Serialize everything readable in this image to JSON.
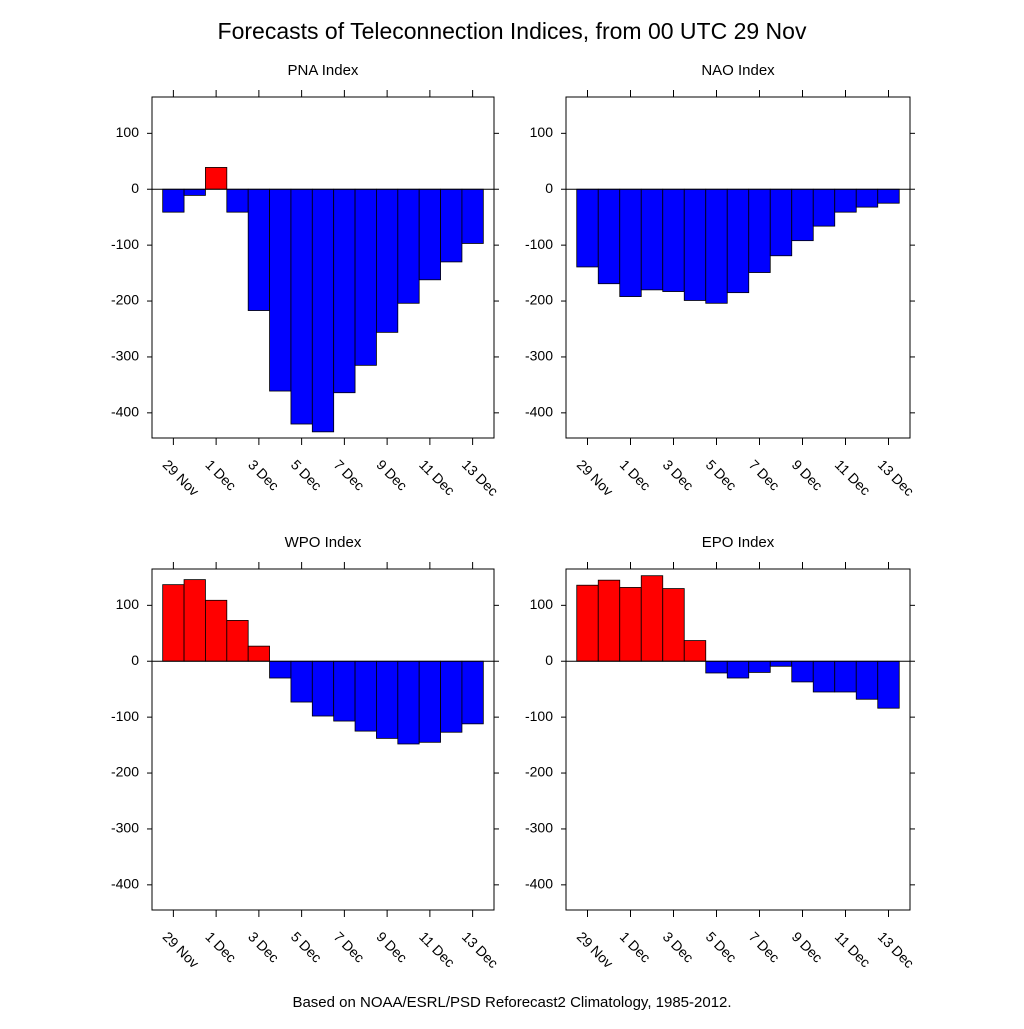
{
  "title": "Forecasts of Teleconnection Indices, from 00 UTC 29 Nov",
  "note": "Based on NOAA/ESRL/PSD Reforecast2 Climatology, 1985-2012.",
  "chart_data": [
    {
      "type": "bar",
      "title": "PNA Index",
      "categories": [
        "29 Nov",
        null,
        "1 Dec",
        null,
        "3 Dec",
        null,
        "5 Dec",
        null,
        "7 Dec",
        null,
        "9 Dec",
        null,
        "11 Dec",
        null,
        "13 Dec"
      ],
      "values": [
        -41,
        -11,
        39,
        -41,
        -217,
        -361,
        -420,
        -434,
        -364,
        -315,
        -256,
        -204,
        -162,
        -130,
        -97
      ],
      "positive_color": "#ff0000",
      "negative_color": "#0000ff",
      "ylim": [
        -445,
        165
      ],
      "yticks": [
        -400,
        -300,
        -200,
        -100,
        0,
        100
      ]
    },
    {
      "type": "bar",
      "title": "NAO Index",
      "categories": [
        "29 Nov",
        null,
        "1 Dec",
        null,
        "3 Dec",
        null,
        "5 Dec",
        null,
        "7 Dec",
        null,
        "9 Dec",
        null,
        "11 Dec",
        null,
        "13 Dec"
      ],
      "values": [
        -139,
        -169,
        -192,
        -180,
        -183,
        -199,
        -204,
        -185,
        -149,
        -119,
        -92,
        -66,
        -41,
        -32,
        -25
      ],
      "positive_color": "#ff0000",
      "negative_color": "#0000ff",
      "ylim": [
        -445,
        165
      ],
      "yticks": [
        -400,
        -300,
        -200,
        -100,
        0,
        100
      ]
    },
    {
      "type": "bar",
      "title": "WPO Index",
      "categories": [
        "29 Nov",
        null,
        "1 Dec",
        null,
        "3 Dec",
        null,
        "5 Dec",
        null,
        "7 Dec",
        null,
        "9 Dec",
        null,
        "11 Dec",
        null,
        "13 Dec"
      ],
      "values": [
        137,
        146,
        109,
        73,
        27,
        -30,
        -73,
        -98,
        -107,
        -125,
        -138,
        -148,
        -145,
        -127,
        -112
      ],
      "positive_color": "#ff0000",
      "negative_color": "#0000ff",
      "ylim": [
        -445,
        165
      ],
      "yticks": [
        -400,
        -300,
        -200,
        -100,
        0,
        100
      ]
    },
    {
      "type": "bar",
      "title": "EPO Index",
      "categories": [
        "29 Nov",
        null,
        "1 Dec",
        null,
        "3 Dec",
        null,
        "5 Dec",
        null,
        "7 Dec",
        null,
        "9 Dec",
        null,
        "11 Dec",
        null,
        "13 Dec"
      ],
      "values": [
        136,
        145,
        132,
        153,
        130,
        37,
        -21,
        -30,
        -20,
        -9,
        -37,
        -55,
        -55,
        -68,
        -84
      ],
      "positive_color": "#ff0000",
      "negative_color": "#0000ff",
      "ylim": [
        -445,
        165
      ],
      "yticks": [
        -400,
        -300,
        -200,
        -100,
        0,
        100
      ]
    }
  ]
}
